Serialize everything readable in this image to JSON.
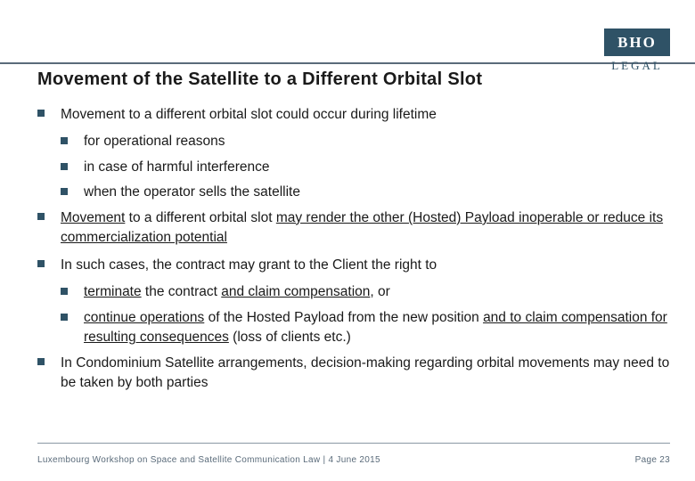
{
  "colors": {
    "brand": "#2f5266",
    "text": "#1a1a1a",
    "footer_text": "#5a6b7a",
    "rule": "#5a6b7a",
    "footer_rule": "#8a98a4",
    "background": "#ffffff"
  },
  "typography": {
    "title_fontsize": 20,
    "body_fontsize": 15.5,
    "footer_fontsize": 10,
    "logo_top_fontsize": 17,
    "logo_bottom_fontsize": 13
  },
  "logo": {
    "top": "BHO",
    "bottom": "LEGAL"
  },
  "title": "Movement of the Satellite to a Different Orbital Slot",
  "bullets": {
    "b1": "Movement to a different orbital slot could occur during lifetime",
    "b1a": "for operational reasons",
    "b1b": "in case of harmful interference",
    "b1c": "when the operator sells the satellite",
    "b2_pre": "Movement",
    "b2_mid": " to a different orbital slot ",
    "b2_u1": "may render the other (Hosted) Payload inoperable or reduce its commercialization potential",
    "b3": "In such cases, the contract may grant to the Client the right to",
    "b3a_u1": "terminate",
    "b3a_mid": " the contract ",
    "b3a_u2": "and claim compensation",
    "b3a_tail": ", or",
    "b3b_u1": "continue operations",
    "b3b_mid": " of the Hosted Payload from the new position ",
    "b3b_u2": "and to claim compensation for resulting consequences",
    "b3b_tail": " (loss of clients etc.)",
    "b4": "In Condominium Satellite arrangements, decision-making regarding orbital movements may need to be taken by both parties"
  },
  "footer": {
    "left": "Luxembourg Workshop on Space and Satellite Communication Law | 4 June 2015",
    "right": "Page 23"
  }
}
